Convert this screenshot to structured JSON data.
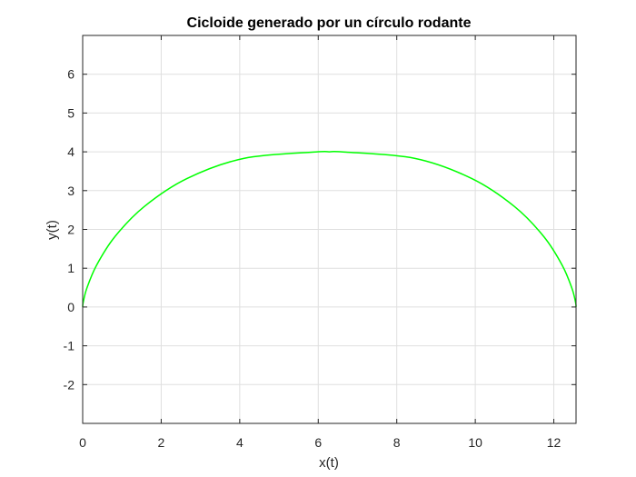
{
  "chart_data": {
    "type": "line",
    "title": "Cicloide generado por un círculo rodante",
    "xlabel": "x(t)",
    "ylabel": "y(t)",
    "xlim": [
      0,
      12.566
    ],
    "ylim": [
      -3,
      7
    ],
    "xticks": [
      0,
      2,
      4,
      6,
      8,
      10,
      12
    ],
    "xtick_labels": [
      "0",
      "2",
      "4",
      "6",
      "8",
      "10",
      "12"
    ],
    "yticks": [
      -2,
      -1,
      0,
      1,
      2,
      3,
      4,
      5,
      6
    ],
    "ytick_labels": [
      "-2",
      "-1",
      "0",
      "1",
      "2",
      "3",
      "4",
      "5",
      "6"
    ],
    "grid": true,
    "series": [
      {
        "color": "#00ff00",
        "x": [
          0,
          0.013,
          0.105,
          0.35,
          0.818,
          1.569,
          2.654,
          4.102,
          5.932,
          6.283,
          6.635,
          8.465,
          9.913,
          10.998,
          11.749,
          12.217,
          12.462,
          12.554,
          12.566
        ],
        "y": [
          0,
          0.12,
          0.48,
          1.07,
          1.81,
          2.59,
          3.31,
          3.83,
          3.996,
          4.0,
          3.996,
          3.83,
          3.31,
          2.59,
          1.81,
          1.07,
          0.48,
          0.12,
          0
        ]
      }
    ]
  }
}
